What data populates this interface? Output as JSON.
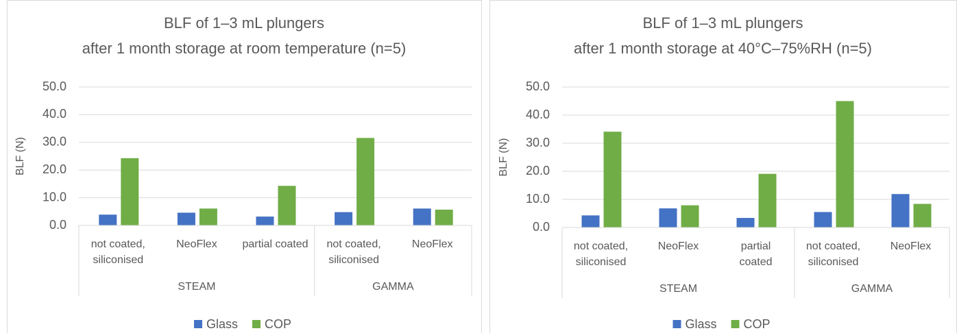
{
  "chart_data": [
    {
      "type": "bar",
      "title": [
        "BLF of 1–3 mL plungers",
        "after 1 month storage at room temperature (n=5)"
      ],
      "y_label": "BLF (N)",
      "groups": [
        {
          "name": "STEAM",
          "categories": [
            [
              "not coated,",
              "siliconised"
            ],
            [
              "NeoFlex"
            ],
            [
              "partial coated"
            ]
          ]
        },
        {
          "name": "GAMMA",
          "categories": [
            [
              "not coated,",
              "siliconised"
            ],
            [
              "NeoFlex"
            ]
          ]
        }
      ],
      "series": [
        {
          "name": "Glass",
          "color": "#4472c4",
          "values": [
            3.9,
            4.6,
            3.2,
            4.8,
            6.1
          ]
        },
        {
          "name": "COP",
          "color": "#70ad47",
          "values": [
            24.3,
            6.1,
            14.3,
            31.6,
            5.7
          ]
        }
      ],
      "ylim": [
        0,
        50
      ],
      "yticks": [
        {
          "value": 0,
          "label": "0.0"
        },
        {
          "value": 10,
          "label": "10.0"
        },
        {
          "value": 20,
          "label": "20.0"
        },
        {
          "value": 30,
          "label": "30.0"
        },
        {
          "value": 40,
          "label": "40.0"
        },
        {
          "value": 50,
          "label": "50.0"
        }
      ],
      "grid": true,
      "legend": "bottom"
    },
    {
      "type": "bar",
      "title": [
        "BLF of 1–3 mL plungers",
        "after 1 month storage at 40°C–75%RH (n=5)"
      ],
      "y_label": "BLF (N)",
      "groups": [
        {
          "name": "STEAM",
          "categories": [
            [
              "not coated,",
              "siliconised"
            ],
            [
              "NeoFlex"
            ],
            [
              "partial",
              "coated"
            ]
          ]
        },
        {
          "name": "GAMMA",
          "categories": [
            [
              "not coated,",
              "siliconised"
            ],
            [
              "NeoFlex"
            ]
          ]
        }
      ],
      "series": [
        {
          "name": "Glass",
          "color": "#4472c4",
          "values": [
            4.3,
            6.8,
            3.4,
            5.5,
            11.9
          ]
        },
        {
          "name": "COP",
          "color": "#70ad47",
          "values": [
            34.1,
            7.9,
            19.1,
            45.0,
            8.4
          ]
        }
      ],
      "ylim": [
        0,
        50
      ],
      "yticks": [
        {
          "value": 0,
          "label": "0.0"
        },
        {
          "value": 10,
          "label": "10.0"
        },
        {
          "value": 20,
          "label": "20.0"
        },
        {
          "value": 30,
          "label": "30.0"
        },
        {
          "value": 40,
          "label": "40.0"
        },
        {
          "value": 50,
          "label": "50.0"
        }
      ],
      "grid": true,
      "legend": "bottom"
    }
  ]
}
